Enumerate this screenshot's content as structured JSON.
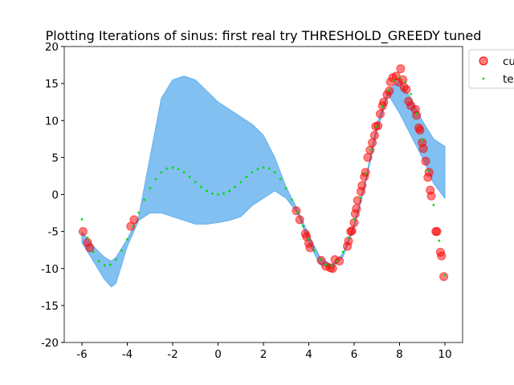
{
  "chart_data": {
    "type": "scatter",
    "title": "Plotting Iterations of sinus: first real try THRESHOLD_GREEDY tuned",
    "xlim": [
      -6.78,
      10.78
    ],
    "ylim": [
      -20,
      20
    ],
    "xticks": [
      -6,
      -4,
      -2,
      0,
      2,
      4,
      6,
      8,
      10
    ],
    "yticks": [
      -20,
      -15,
      -10,
      -5,
      0,
      5,
      10,
      15,
      20
    ],
    "grid": false,
    "band": {
      "color": "#62b0ee",
      "x": [
        -6,
        -5.5,
        -5,
        -4.7,
        -4.5,
        -4,
        -3.5,
        -3,
        -2.5,
        -2,
        -1.5,
        -1,
        -0.5,
        0,
        0.5,
        1,
        1.5,
        2,
        2.5,
        3,
        3.5,
        4,
        4.5,
        5,
        5.5,
        6,
        6.5,
        7,
        7.5,
        8,
        8.5,
        9,
        9.5,
        10
      ],
      "lower": [
        -6.5,
        -9,
        -11.5,
        -12.5,
        -12,
        -7,
        -3.5,
        -2.5,
        -2.5,
        -3,
        -3.5,
        -4,
        -4,
        -3.8,
        -3.5,
        -3,
        -1.5,
        -0.5,
        0.5,
        -0.5,
        -2.5,
        -6.5,
        -9.5,
        -10,
        -8.5,
        -4.5,
        1.5,
        8.5,
        13.5,
        11,
        8,
        5,
        1.5,
        -0.5
      ],
      "upper": [
        -5,
        -7,
        -8.5,
        -9,
        -8.5,
        -6,
        -3,
        5,
        13,
        15.5,
        16,
        15.5,
        14,
        12.5,
        11.5,
        10.5,
        9.5,
        8,
        5,
        1,
        -2,
        -5.5,
        -8.5,
        -9.5,
        -8,
        -4,
        2,
        9.5,
        14,
        15.5,
        13,
        10,
        7.5,
        6.5
      ]
    },
    "series": [
      {
        "name": "cu",
        "color": "#ff0000",
        "x": [
          -5.95,
          -5.75,
          -5.65,
          -3.85,
          -3.7,
          3.45,
          3.6,
          3.85,
          3.9,
          4.0,
          4.05,
          4.55,
          4.75,
          4.95,
          5.05,
          5.15,
          5.35,
          5.7,
          5.75,
          5.85,
          5.9,
          6.0,
          6.05,
          6.1,
          6.15,
          6.3,
          6.35,
          6.45,
          6.5,
          6.6,
          6.7,
          6.8,
          6.9,
          6.95,
          7.05,
          7.15,
          7.25,
          7.3,
          7.45,
          7.55,
          7.6,
          7.7,
          7.85,
          7.95,
          8.05,
          8.15,
          8.2,
          8.3,
          8.4,
          8.5,
          8.7,
          8.75,
          8.85,
          8.9,
          9.0,
          9.05,
          9.15,
          9.25,
          9.3,
          9.35,
          9.4,
          9.6,
          9.65,
          9.8,
          9.85,
          9.95
        ],
        "y": [
          -5,
          -6.5,
          -7.2,
          -4.3,
          -3.4,
          -2.2,
          -3.4,
          -5.3,
          -5.7,
          -6.6,
          -7.2,
          -8.9,
          -9.7,
          -9.9,
          -10,
          -8.8,
          -9,
          -7,
          -6.3,
          -5,
          -4.9,
          -3.8,
          -2.6,
          -1.9,
          -0.8,
          0.4,
          1.2,
          2.4,
          3,
          5,
          6,
          7,
          8,
          9.2,
          9.3,
          10.9,
          12,
          12.5,
          13.5,
          14,
          15.2,
          15.8,
          16,
          15.2,
          17,
          15.5,
          14.5,
          14.2,
          12.6,
          12,
          11.5,
          10.7,
          9,
          8.7,
          7,
          6.2,
          4.5,
          2.3,
          3,
          0.6,
          -0.2,
          -5,
          -5,
          -7.8,
          -8.3,
          -11.1
        ]
      },
      {
        "name": "te",
        "color": "#00dd00",
        "x": [
          -6,
          -5.75,
          -5.5,
          -5.25,
          -5,
          -4.75,
          -4.5,
          -4.25,
          -4,
          -3.75,
          -3.5,
          -3.25,
          -3,
          -2.75,
          -2.5,
          -2.25,
          -2,
          -1.75,
          -1.5,
          -1.25,
          -1,
          -0.75,
          -0.5,
          -0.25,
          0,
          0.25,
          0.5,
          0.75,
          1,
          1.25,
          1.5,
          1.75,
          2,
          2.25,
          2.5,
          2.75,
          3,
          3.25,
          3.5,
          3.75,
          4,
          4.25,
          4.5,
          4.75,
          5,
          5.25,
          5.5,
          5.75,
          6,
          6.25,
          6.5,
          6.75,
          7,
          7.25,
          7.5,
          7.75,
          8,
          8.25,
          8.5,
          8.75,
          9,
          9.25,
          9.5,
          9.75,
          10
        ],
        "y": [
          -3.353,
          -5.845,
          -7.761,
          -9.018,
          -9.589,
          -9.493,
          -8.798,
          -7.607,
          -6.054,
          -4.287,
          -2.456,
          -0.703,
          0.847,
          2.099,
          2.993,
          3.501,
          3.637,
          3.444,
          2.992,
          2.372,
          1.683,
          1.022,
          0.479,
          0.124,
          0,
          0.124,
          0.479,
          1.022,
          1.683,
          2.372,
          2.992,
          3.444,
          3.637,
          3.501,
          2.993,
          2.099,
          0.847,
          -0.703,
          -2.456,
          -4.287,
          -6.054,
          -7.607,
          -8.798,
          -9.493,
          -9.589,
          -9.018,
          -7.761,
          -5.845,
          -3.353,
          -0.415,
          2.796,
          6.075,
          9.198,
          11.935,
          14.07,
          15.417,
          15.83,
          15.226,
          13.575,
          10.932,
          7.418,
          3.225,
          -1.429,
          -6.238,
          -10.88
        ]
      }
    ]
  }
}
